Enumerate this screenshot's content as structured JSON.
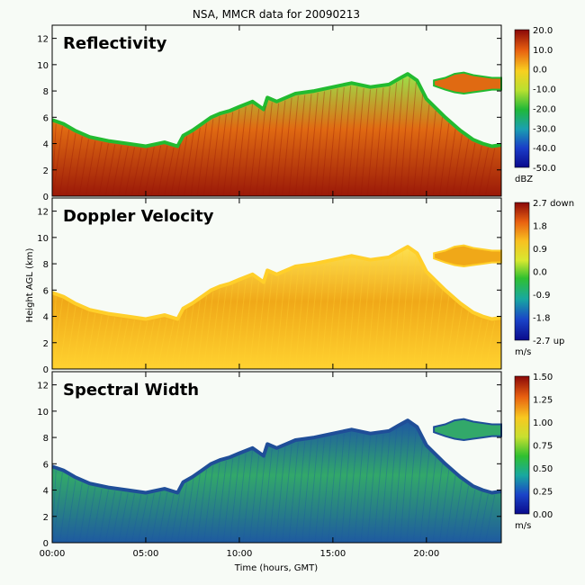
{
  "chart_data": {
    "title": "NSA, MMCR data for 20090213",
    "xlabel": "Time (hours, GMT)",
    "ylabel": "Height AGL (km)",
    "x_ticks": [
      "00:00",
      "05:00",
      "10:00",
      "15:00",
      "20:00"
    ],
    "x_tick_values": [
      0,
      5,
      10,
      15,
      20
    ],
    "xlim": [
      0,
      24
    ],
    "y_ticks": [
      "0",
      "2",
      "4",
      "6",
      "8",
      "10",
      "12"
    ],
    "y_tick_values": [
      0,
      2,
      4,
      6,
      8,
      10,
      12
    ],
    "ylim": [
      0,
      13
    ],
    "cloud_top_km": {
      "hours": [
        0,
        0.6,
        1.2,
        2,
        3,
        4,
        5,
        6,
        6.7,
        7,
        7.5,
        8,
        8.5,
        9,
        9.5,
        10,
        10.7,
        11.3,
        11.5,
        12,
        13,
        14,
        15,
        16,
        17,
        18,
        18.5,
        19,
        19.5,
        20,
        21,
        21.8,
        22.5,
        23,
        23.5,
        24
      ],
      "values": [
        5.8,
        5.5,
        5.0,
        4.5,
        4.2,
        4.0,
        3.8,
        4.1,
        3.8,
        4.6,
        5.0,
        5.5,
        6.0,
        6.3,
        6.5,
        6.8,
        7.2,
        6.6,
        7.5,
        7.2,
        7.8,
        8.0,
        8.3,
        8.6,
        8.3,
        8.5,
        8.9,
        9.3,
        8.8,
        7.4,
        6.0,
        5.0,
        4.3,
        4.0,
        3.8,
        3.9
      ]
    },
    "upper_layer_km": {
      "hours": [
        20.4,
        21,
        21.5,
        22,
        22.5,
        23,
        23.5,
        24
      ],
      "bottom": [
        8.4,
        8.1,
        7.9,
        7.8,
        7.9,
        8.0,
        8.1,
        8.1
      ],
      "top": [
        8.8,
        9.0,
        9.3,
        9.4,
        9.2,
        9.1,
        9.0,
        9.0
      ]
    },
    "panels": [
      {
        "name": "Reflectivity",
        "unit": "dBZ",
        "colorbar_ticks": [
          "20.0",
          "10.0",
          "0.0",
          "-10.0",
          "-20.0",
          "-30.0",
          "-40.0",
          "-50.0"
        ],
        "colorbar_range": [
          -50,
          20
        ],
        "colors": {
          "low": "#e06a12",
          "high": "#9a1808",
          "edge": "#22bb30",
          "edge_light": "#9be24a"
        }
      },
      {
        "name": "Doppler Velocity",
        "unit": "m/s",
        "colorbar_ticks": [
          "2.7 down",
          "1.8",
          "0.9",
          "0.0",
          "-0.9",
          "-1.8",
          "-2.7 up"
        ],
        "colorbar_range": [
          -2.7,
          2.7
        ],
        "colors": {
          "low": "#f0a818",
          "high": "#ffd230",
          "edge": "#ffcf2a",
          "edge_light": "#fde050"
        }
      },
      {
        "name": "Spectral Width",
        "unit": "m/s",
        "colorbar_ticks": [
          "1.50",
          "1.25",
          "1.00",
          "0.75",
          "0.50",
          "0.25",
          "0.00"
        ],
        "colorbar_range": [
          0,
          1.5
        ],
        "colors": {
          "low": "#32a86a",
          "high": "#1e5aa0",
          "edge": "#1f4e98",
          "edge_light": "#1d57a3"
        }
      }
    ]
  }
}
